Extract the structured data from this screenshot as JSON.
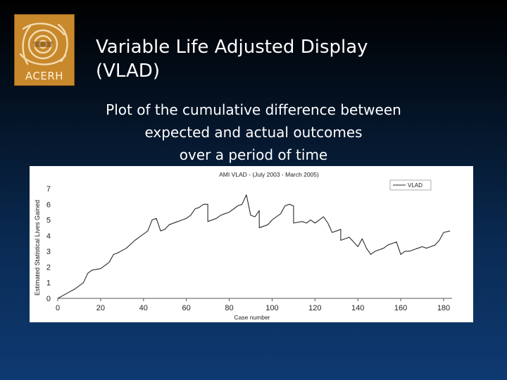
{
  "slide": {
    "title_line1": "Variable Life Adjusted Display",
    "title_line2": "(VLAD)",
    "subtitle_lines": [
      "Plot of the cumulative difference between",
      "expected and actual outcomes",
      "over a period of time"
    ],
    "logo_text": "ACERH"
  },
  "colors": {
    "logo_bg": "#c8882c",
    "line": "#2b2b2b",
    "panel_bg": "#ffffff"
  },
  "chart_data": {
    "type": "line",
    "title": "AMI VLAD - (July 2003 - March 2005)",
    "xlabel": "Case number",
    "ylabel": "Estimated Statistical Lives Gained",
    "xlim": [
      0,
      180
    ],
    "ylim": [
      0,
      7
    ],
    "xticks": [
      "0",
      "20",
      "40",
      "60",
      "80",
      "100",
      "120",
      "140",
      "160",
      "180"
    ],
    "yticks": [
      "0",
      "1",
      "2",
      "3",
      "4",
      "5",
      "6",
      "7"
    ],
    "legend": "top-right",
    "grid": false,
    "series": [
      {
        "name": "VLAD",
        "x": [
          0,
          4,
          8,
          12,
          14,
          16,
          20,
          24,
          26,
          28,
          32,
          36,
          38,
          40,
          42,
          44,
          46,
          48,
          50,
          52,
          56,
          58,
          60,
          62,
          64,
          66,
          68,
          70,
          70,
          74,
          76,
          78,
          80,
          82,
          84,
          86,
          88,
          90,
          92,
          94,
          94,
          98,
          100,
          102,
          104,
          106,
          108,
          110,
          110,
          114,
          116,
          118,
          120,
          122,
          124,
          126,
          128,
          130,
          132,
          132,
          136,
          138,
          140,
          142,
          144,
          146,
          148,
          150,
          152,
          154,
          156,
          158,
          160,
          162,
          164,
          166,
          168,
          170,
          172,
          174,
          176,
          178,
          180,
          183
        ],
        "y": [
          0,
          0.3,
          0.6,
          1.0,
          1.6,
          1.8,
          1.9,
          2.3,
          2.8,
          2.9,
          3.2,
          3.7,
          3.9,
          4.1,
          4.3,
          5.0,
          5.1,
          4.3,
          4.4,
          4.7,
          4.9,
          5.0,
          5.1,
          5.3,
          5.7,
          5.8,
          6.0,
          6.0,
          4.9,
          5.1,
          5.3,
          5.4,
          5.5,
          5.7,
          5.9,
          6.0,
          6.6,
          5.3,
          5.2,
          5.6,
          4.5,
          4.7,
          5.0,
          5.2,
          5.4,
          5.9,
          6.0,
          5.9,
          4.8,
          4.9,
          4.8,
          5.0,
          4.8,
          5.0,
          5.2,
          4.8,
          4.2,
          4.3,
          4.4,
          3.7,
          3.9,
          3.6,
          3.3,
          3.8,
          3.2,
          2.8,
          3.0,
          3.1,
          3.2,
          3.4,
          3.5,
          3.6,
          2.8,
          3.0,
          3.0,
          3.1,
          3.2,
          3.3,
          3.2,
          3.3,
          3.4,
          3.7,
          4.2,
          4.3
        ]
      }
    ]
  }
}
